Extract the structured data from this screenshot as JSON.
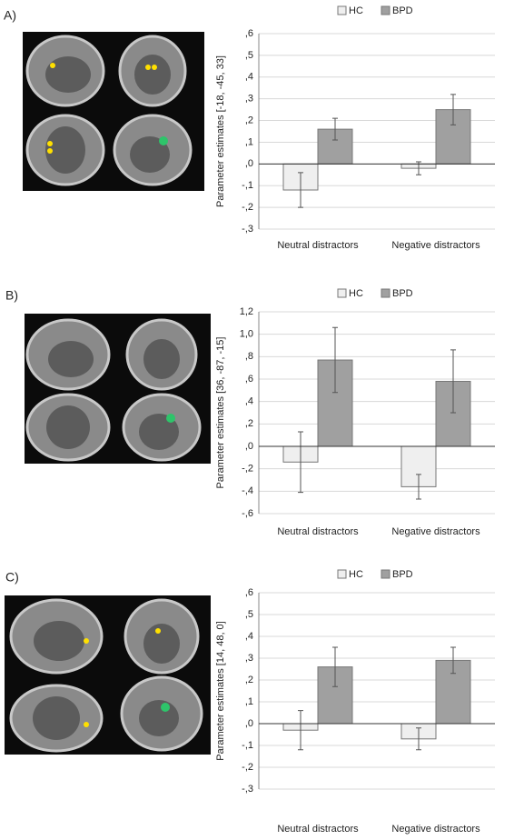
{
  "chart_data": [
    {
      "type": "bar",
      "panel_label": "A)",
      "ylabel": "Parameter estimates [-18, -45, 33]",
      "categories": [
        "Neutral distractors",
        "Negative distractors"
      ],
      "series": [
        {
          "name": "HC",
          "color": "#efefef",
          "values": [
            -0.12,
            -0.02
          ],
          "errors": [
            0.08,
            0.03
          ]
        },
        {
          "name": "BPD",
          "color": "#a0a0a0",
          "values": [
            0.16,
            0.25
          ],
          "errors": [
            0.05,
            0.07
          ]
        }
      ],
      "ylim": [
        -0.3,
        0.6
      ],
      "yticks": [
        {
          "value": -0.3,
          "label": "-,3"
        },
        {
          "value": -0.2,
          "label": "-,2"
        },
        {
          "value": -0.1,
          "label": "-,1"
        },
        {
          "value": 0,
          "label": ",0"
        },
        {
          "value": 0.1,
          "label": ",1"
        },
        {
          "value": 0.2,
          "label": ",2"
        },
        {
          "value": 0.3,
          "label": ",3"
        },
        {
          "value": 0.4,
          "label": ",4"
        },
        {
          "value": 0.5,
          "label": ",5"
        },
        {
          "value": 0.6,
          "label": ",6"
        }
      ],
      "grid": true
    },
    {
      "type": "bar",
      "panel_label": "B)",
      "ylabel": "Parameter estimates [36, -87, -15]",
      "categories": [
        "Neutral distractors",
        "Negative distractors"
      ],
      "series": [
        {
          "name": "HC",
          "color": "#efefef",
          "values": [
            -0.14,
            -0.36
          ],
          "errors": [
            0.27,
            0.11
          ]
        },
        {
          "name": "BPD",
          "color": "#a0a0a0",
          "values": [
            0.77,
            0.58
          ],
          "errors": [
            0.29,
            0.28
          ]
        }
      ],
      "ylim": [
        -0.6,
        1.2
      ],
      "yticks": [
        {
          "value": -0.6,
          "label": "-,6"
        },
        {
          "value": -0.4,
          "label": "-,4"
        },
        {
          "value": -0.2,
          "label": "-,2"
        },
        {
          "value": 0,
          "label": ",0"
        },
        {
          "value": 0.2,
          "label": ",2"
        },
        {
          "value": 0.4,
          "label": ",4"
        },
        {
          "value": 0.6,
          "label": ",6"
        },
        {
          "value": 0.8,
          "label": ",8"
        },
        {
          "value": 1.0,
          "label": "1,0"
        },
        {
          "value": 1.2,
          "label": "1,2"
        }
      ],
      "grid": true
    },
    {
      "type": "bar",
      "panel_label": "C)",
      "ylabel": "Parameter estimates [14, 48, 0]",
      "categories": [
        "Neutral distractors",
        "Negative distractors"
      ],
      "series": [
        {
          "name": "HC",
          "color": "#efefef",
          "values": [
            -0.03,
            -0.07
          ],
          "errors": [
            0.09,
            0.05
          ]
        },
        {
          "name": "BPD",
          "color": "#a0a0a0",
          "values": [
            0.26,
            0.29
          ],
          "errors": [
            0.09,
            0.06
          ]
        }
      ],
      "ylim": [
        -0.3,
        0.6
      ],
      "yticks": [
        {
          "value": -0.3,
          "label": "-,3"
        },
        {
          "value": -0.2,
          "label": "-,2"
        },
        {
          "value": -0.1,
          "label": "-,1"
        },
        {
          "value": 0,
          "label": ",0"
        },
        {
          "value": 0.1,
          "label": ",1"
        },
        {
          "value": 0.2,
          "label": ",2"
        },
        {
          "value": 0.3,
          "label": ",3"
        },
        {
          "value": 0.4,
          "label": ",4"
        },
        {
          "value": 0.5,
          "label": ",5"
        },
        {
          "value": 0.6,
          "label": ",6"
        }
      ],
      "grid": true
    }
  ]
}
